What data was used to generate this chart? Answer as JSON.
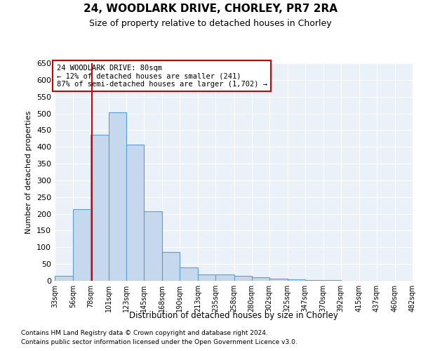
{
  "title": "24, WOODLARK DRIVE, CHORLEY, PR7 2RA",
  "subtitle": "Size of property relative to detached houses in Chorley",
  "xlabel": "Distribution of detached houses by size in Chorley",
  "ylabel": "Number of detached properties",
  "footnote1": "Contains HM Land Registry data © Crown copyright and database right 2024.",
  "footnote2": "Contains public sector information licensed under the Open Government Licence v3.0.",
  "annotation_line1": "24 WOODLARK DRIVE: 80sqm",
  "annotation_line2": "← 12% of detached houses are smaller (241)",
  "annotation_line3": "87% of semi-detached houses are larger (1,702) →",
  "subject_size": 80,
  "bar_edges": [
    33,
    56,
    78,
    101,
    123,
    145,
    168,
    190,
    213,
    235,
    258,
    280,
    302,
    325,
    347,
    370,
    392,
    415,
    437,
    460,
    482
  ],
  "bar_heights": [
    15,
    213,
    437,
    503,
    407,
    207,
    85,
    40,
    18,
    18,
    15,
    11,
    7,
    5,
    3,
    2,
    1,
    1,
    1,
    1,
    5
  ],
  "bar_color": "#c5d8ed",
  "bar_edge_color": "#5a9fd4",
  "line_color": "#cc0000",
  "background_color": "#eaf1f8",
  "ylim": [
    0,
    650
  ],
  "yticks": [
    0,
    50,
    100,
    150,
    200,
    250,
    300,
    350,
    400,
    450,
    500,
    550,
    600,
    650
  ]
}
